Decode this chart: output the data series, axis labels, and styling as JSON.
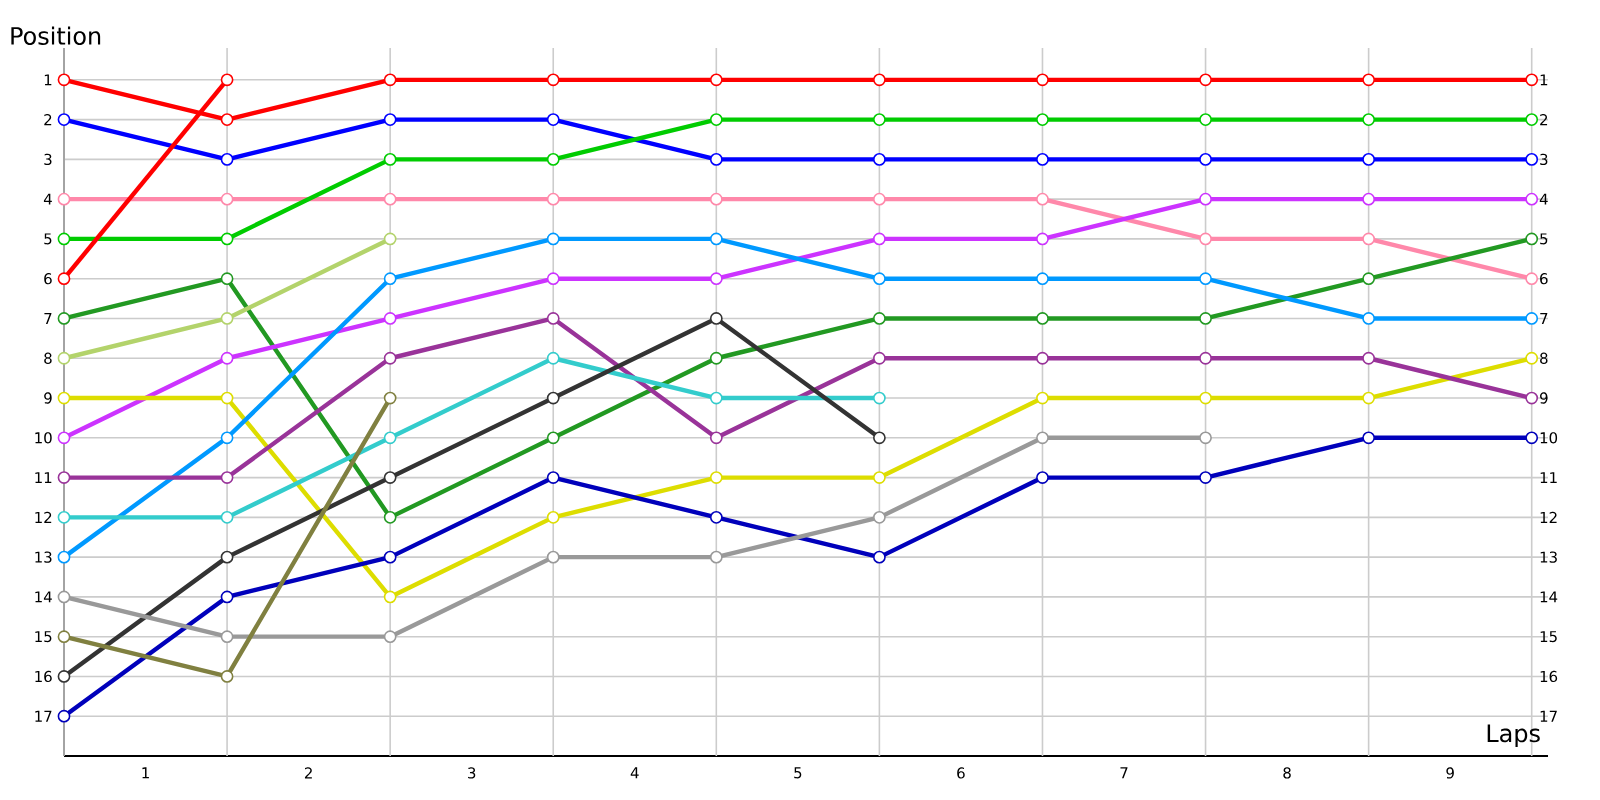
{
  "chart_data": {
    "type": "line",
    "ylabel": "Position",
    "xlabel": "Laps",
    "x": [
      0,
      1,
      2,
      3,
      4,
      5,
      6,
      7,
      8,
      9
    ],
    "xlim": [
      0,
      9.1
    ],
    "xticks": [
      {
        "value": 0,
        "label": null
      },
      {
        "value": 0.5,
        "label": "1"
      },
      {
        "value": 1,
        "label": null
      },
      {
        "value": 1.5,
        "label": "2"
      },
      {
        "value": 2,
        "label": null
      },
      {
        "value": 2.5,
        "label": "3"
      },
      {
        "value": 3,
        "label": null
      },
      {
        "value": 3.5,
        "label": "4"
      },
      {
        "value": 4,
        "label": null
      },
      {
        "value": 4.5,
        "label": "5"
      },
      {
        "value": 5,
        "label": null
      },
      {
        "value": 5.5,
        "label": "6"
      },
      {
        "value": 6,
        "label": null
      },
      {
        "value": 6.5,
        "label": "7"
      },
      {
        "value": 7,
        "label": null
      },
      {
        "value": 7.5,
        "label": "8"
      },
      {
        "value": 8,
        "label": null
      },
      {
        "value": 8.5,
        "label": "9"
      },
      {
        "value": 9,
        "label": null
      }
    ],
    "ylim": [
      18,
      0.2
    ],
    "yticks": [
      1,
      2,
      3,
      4,
      5,
      6,
      7,
      8,
      9,
      10,
      11,
      12,
      13,
      14,
      15,
      16,
      17
    ],
    "y2lim": [
      18,
      0.2
    ],
    "y2ticks": [
      1,
      2,
      3,
      4,
      5,
      6,
      7,
      8,
      9,
      10,
      11,
      12,
      13,
      14,
      15,
      16,
      17
    ],
    "grid": true,
    "marker": "circle",
    "line_style": "solid",
    "series": [
      {
        "color": "#ff0000",
        "values": [
          1,
          2,
          1,
          1,
          1,
          1,
          1,
          1,
          1,
          1
        ]
      },
      {
        "color": "#0000ff",
        "values": [
          2,
          3,
          2,
          2,
          3,
          3,
          3,
          3,
          3,
          3
        ]
      },
      {
        "color": "#ff88aa",
        "values": [
          4,
          4,
          4,
          4,
          4,
          4,
          4,
          5,
          5,
          6
        ]
      },
      {
        "color": "#00cc00",
        "values": [
          5,
          5,
          3,
          3,
          2,
          2,
          2,
          2,
          2,
          2
        ]
      },
      {
        "color": "#ff0000",
        "values": [
          6,
          1,
          null,
          null,
          null,
          null,
          null,
          null,
          null,
          null
        ]
      },
      {
        "color": "#229922",
        "values": [
          7,
          6,
          12,
          10,
          8,
          7,
          7,
          7,
          6,
          5
        ]
      },
      {
        "color": "#b3d36b",
        "values": [
          8,
          7,
          5,
          null,
          null,
          null,
          null,
          null,
          null,
          null
        ]
      },
      {
        "color": "#cc33ff",
        "values": [
          10,
          8,
          7,
          6,
          6,
          5,
          5,
          4,
          4,
          4
        ]
      },
      {
        "color": "#dddd00",
        "values": [
          9,
          9,
          14,
          12,
          11,
          11,
          9,
          9,
          9,
          8
        ]
      },
      {
        "color": "#0099ff",
        "values": [
          13,
          10,
          6,
          5,
          5,
          6,
          6,
          6,
          7,
          7
        ]
      },
      {
        "color": "#993399",
        "values": [
          11,
          11,
          8,
          7,
          10,
          8,
          8,
          8,
          8,
          9
        ]
      },
      {
        "color": "#33cccc",
        "values": [
          12,
          12,
          10,
          8,
          9,
          9,
          null,
          null,
          null,
          null
        ]
      },
      {
        "color": "#333333",
        "values": [
          16,
          13,
          11,
          9,
          7,
          10,
          null,
          null,
          null,
          null
        ]
      },
      {
        "color": "#0000bb",
        "values": [
          17,
          14,
          13,
          11,
          12,
          13,
          11,
          11,
          10,
          10
        ]
      },
      {
        "color": "#999999",
        "values": [
          14,
          15,
          15,
          13,
          13,
          12,
          10,
          10,
          null,
          null
        ]
      },
      {
        "color": "#808040",
        "values": [
          15,
          16,
          9,
          null,
          null,
          null,
          null,
          null,
          null,
          null
        ]
      }
    ]
  }
}
